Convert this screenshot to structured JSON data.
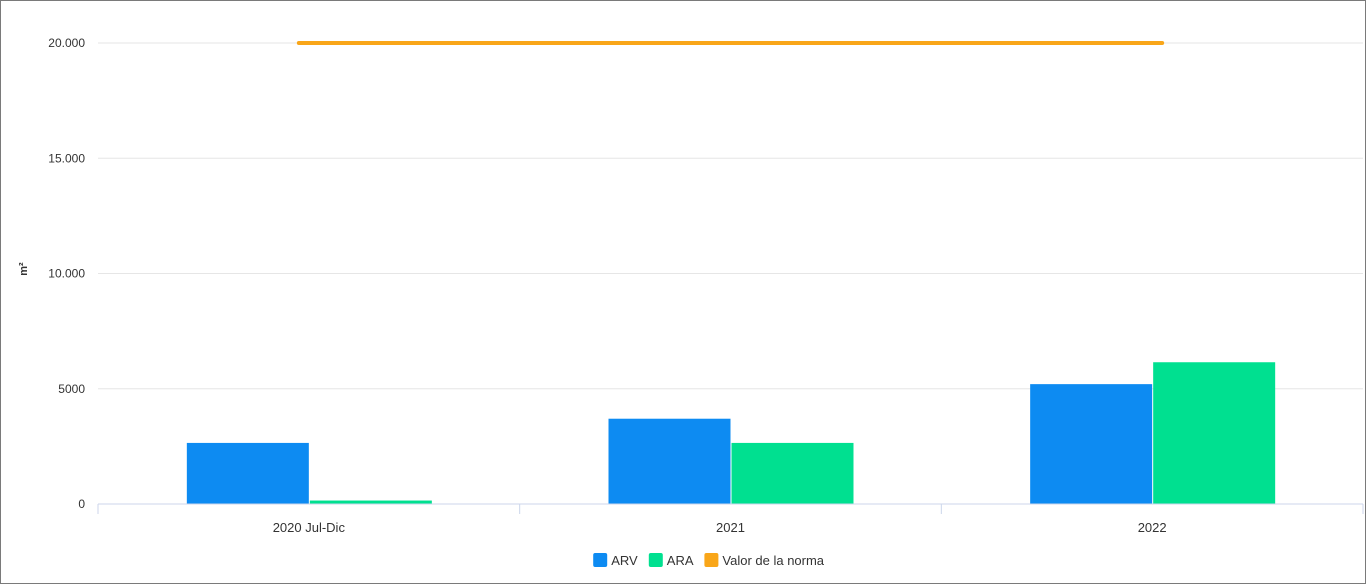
{
  "chart_data": {
    "type": "bar",
    "title": "",
    "xlabel": "",
    "ylabel": "m²",
    "categories": [
      "2020 Jul-Dic",
      "2021",
      "2022"
    ],
    "series": [
      {
        "name": "ARV",
        "type": "bar",
        "color": "#0d8bf2",
        "values": [
          2650,
          3700,
          5200
        ]
      },
      {
        "name": "ARA",
        "type": "bar",
        "color": "#00e090",
        "values": [
          150,
          2650,
          6150
        ]
      },
      {
        "name": "Valor de la norma",
        "type": "line",
        "color": "#f9a619",
        "values": [
          20000,
          20000,
          20000
        ]
      }
    ],
    "ylim": [
      0,
      20000
    ],
    "yticks": [
      {
        "value": 0,
        "label": "0"
      },
      {
        "value": 5000,
        "label": "5000"
      },
      {
        "value": 10000,
        "label": "10.000"
      },
      {
        "value": 15000,
        "label": "15.000"
      },
      {
        "value": 20000,
        "label": "20.000"
      }
    ],
    "grid": true,
    "legend_position": "bottom-center"
  }
}
